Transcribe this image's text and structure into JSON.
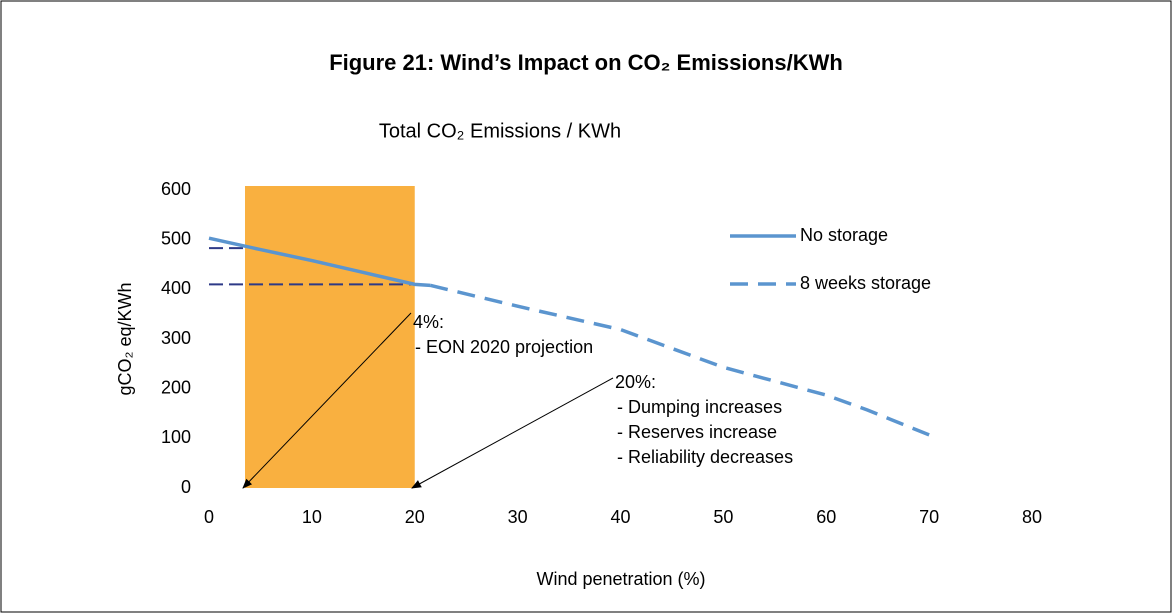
{
  "chart_data": {
    "type": "line",
    "title": "Figure 21: Wind’s Impact on CO₂ Emissions/KWh",
    "subtitle": "Total CO₂ Emissions / KWh",
    "x_label": "Wind penetration (%)",
    "y_label": "gCO₂ eq/KWh",
    "xlim": [
      0,
      80
    ],
    "xticks": [
      0,
      10,
      20,
      30,
      40,
      50,
      60,
      70,
      80
    ],
    "ylim": [
      0,
      600
    ],
    "yticks": [
      0,
      100,
      200,
      300,
      400,
      500,
      600
    ],
    "grid": false,
    "legend": "right",
    "series": [
      {
        "name": "No storage",
        "color": "#5b95cf",
        "line_style": "solid",
        "x": [
          0,
          5,
          10,
          15,
          20,
          21.5
        ],
        "values": [
          503,
          480,
          458,
          434,
          410,
          408
        ]
      },
      {
        "name": "8 weeks storage",
        "color": "#5b95cf",
        "line_style": "dashed",
        "x": [
          21.5,
          30,
          40,
          50,
          60,
          64,
          70
        ],
        "values": [
          408,
          366,
          319,
          243,
          187,
          157,
          107
        ]
      }
    ],
    "shaded_region": {
      "x": [
        3.5,
        20
      ],
      "color": "#f9b040"
    },
    "reference_lines": [
      {
        "y": 483,
        "x": [
          0,
          3.5
        ],
        "color": "#2e3a87"
      },
      {
        "y": 410,
        "x": [
          0,
          20
        ],
        "color": "#2e3a87"
      }
    ],
    "annotations": [
      {
        "lines": [
          "4%:",
          "- EON 2020 projection"
        ]
      },
      {
        "lines": [
          "20%:",
          "- Dumping increases",
          "- Reserves increase",
          "- Reliability decreases"
        ]
      }
    ]
  }
}
